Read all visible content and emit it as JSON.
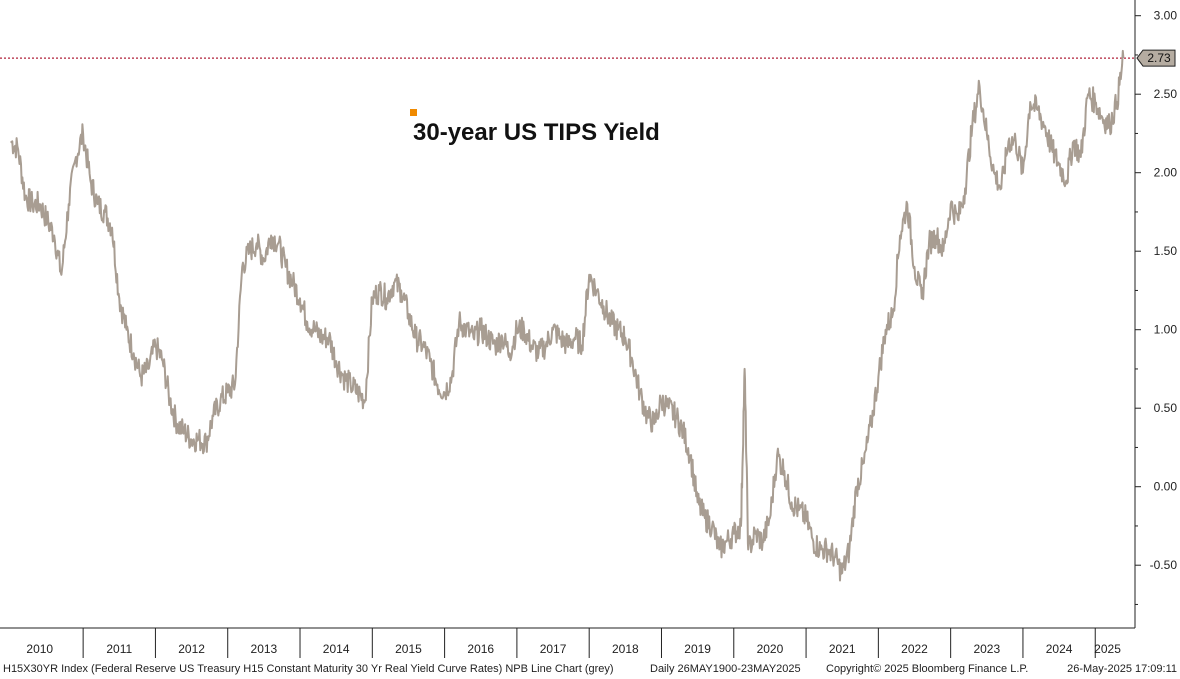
{
  "chart_data": {
    "type": "line",
    "title": "30-year US TIPS Yield",
    "series": [
      {
        "name": "H15X30YR Index",
        "color": "#a89d92",
        "x": [
          2010.0,
          2010.1,
          2010.2,
          2010.3,
          2010.4,
          2010.5,
          2010.6,
          2010.7,
          2010.8,
          2010.9,
          2011.0,
          2011.1,
          2011.2,
          2011.3,
          2011.4,
          2011.5,
          2011.6,
          2011.7,
          2011.8,
          2011.9,
          2012.0,
          2012.1,
          2012.2,
          2012.3,
          2012.4,
          2012.5,
          2012.6,
          2012.7,
          2012.8,
          2012.9,
          2013.0,
          2013.1,
          2013.2,
          2013.3,
          2013.4,
          2013.5,
          2013.6,
          2013.7,
          2013.8,
          2013.9,
          2014.0,
          2014.1,
          2014.2,
          2014.3,
          2014.4,
          2014.5,
          2014.6,
          2014.7,
          2014.8,
          2014.9,
          2015.0,
          2015.1,
          2015.2,
          2015.3,
          2015.4,
          2015.5,
          2015.6,
          2015.7,
          2015.8,
          2015.9,
          2016.0,
          2016.1,
          2016.2,
          2016.3,
          2016.4,
          2016.5,
          2016.6,
          2016.7,
          2016.8,
          2016.9,
          2017.0,
          2017.1,
          2017.2,
          2017.3,
          2017.4,
          2017.5,
          2017.6,
          2017.7,
          2017.8,
          2017.9,
          2018.0,
          2018.1,
          2018.2,
          2018.3,
          2018.4,
          2018.5,
          2018.6,
          2018.7,
          2018.8,
          2018.9,
          2019.0,
          2019.1,
          2019.2,
          2019.3,
          2019.4,
          2019.5,
          2019.6,
          2019.7,
          2019.8,
          2019.9,
          2020.0,
          2020.1,
          2020.15,
          2020.2,
          2020.3,
          2020.4,
          2020.5,
          2020.6,
          2020.7,
          2020.8,
          2020.9,
          2021.0,
          2021.1,
          2021.2,
          2021.3,
          2021.4,
          2021.5,
          2021.6,
          2021.7,
          2021.8,
          2021.9,
          2022.0,
          2022.1,
          2022.2,
          2022.3,
          2022.4,
          2022.5,
          2022.6,
          2022.7,
          2022.8,
          2022.9,
          2023.0,
          2023.1,
          2023.2,
          2023.3,
          2023.4,
          2023.5,
          2023.6,
          2023.7,
          2023.8,
          2023.9,
          2024.0,
          2024.1,
          2024.2,
          2024.3,
          2024.4,
          2024.5,
          2024.6,
          2024.7,
          2024.8,
          2024.9,
          2025.0,
          2025.1,
          2025.2,
          2025.3,
          2025.39
        ],
        "values": [
          2.2,
          2.15,
          1.85,
          1.8,
          1.8,
          1.7,
          1.6,
          1.35,
          1.8,
          2.1,
          2.25,
          1.95,
          1.8,
          1.75,
          1.65,
          1.2,
          1.0,
          0.85,
          0.7,
          0.75,
          0.9,
          0.8,
          0.55,
          0.4,
          0.35,
          0.3,
          0.3,
          0.28,
          0.45,
          0.55,
          0.6,
          0.65,
          1.4,
          1.5,
          1.55,
          1.45,
          1.6,
          1.55,
          1.4,
          1.3,
          1.2,
          1.05,
          1.0,
          0.95,
          0.95,
          0.8,
          0.7,
          0.65,
          0.6,
          0.55,
          1.2,
          1.25,
          1.2,
          1.3,
          1.25,
          1.1,
          0.95,
          0.9,
          0.8,
          0.65,
          0.6,
          0.7,
          1.05,
          1.0,
          0.95,
          1.0,
          0.95,
          0.9,
          0.95,
          0.85,
          1.0,
          1.0,
          0.9,
          0.85,
          0.9,
          1.0,
          0.95,
          0.9,
          0.95,
          0.9,
          1.35,
          1.25,
          1.15,
          1.05,
          1.0,
          0.95,
          0.8,
          0.6,
          0.45,
          0.4,
          0.55,
          0.5,
          0.45,
          0.35,
          0.2,
          -0.1,
          -0.2,
          -0.25,
          -0.4,
          -0.35,
          -0.3,
          -0.25,
          0.75,
          -0.4,
          -0.3,
          -0.35,
          -0.2,
          0.2,
          0.1,
          -0.1,
          -0.15,
          -0.2,
          -0.35,
          -0.4,
          -0.4,
          -0.45,
          -0.55,
          -0.4,
          0.0,
          0.15,
          0.4,
          0.7,
          1.0,
          1.1,
          1.6,
          1.8,
          1.4,
          1.2,
          1.55,
          1.6,
          1.5,
          1.8,
          1.7,
          1.9,
          2.3,
          2.55,
          2.25,
          2.0,
          1.9,
          2.2,
          2.2,
          2.0,
          2.45,
          2.4,
          2.3,
          2.15,
          2.05,
          1.95,
          2.2,
          2.1,
          2.5,
          2.45,
          2.35,
          2.3,
          2.45,
          2.73
        ]
      }
    ],
    "xlim": [
      2009.85,
      2025.55
    ],
    "ylim": [
      -0.9,
      3.1
    ],
    "yticks": [
      -0.5,
      0.0,
      0.5,
      1.0,
      1.5,
      2.0,
      2.5,
      3.0
    ],
    "ytick_labels": [
      "-0.50",
      "0.00",
      "0.50",
      "1.00",
      "1.50",
      "2.00",
      "2.50",
      "3.00"
    ],
    "ytick_minor": [
      -0.75,
      -0.25,
      0.25,
      0.75,
      1.25,
      1.75,
      2.25,
      2.75
    ],
    "year_boundaries": [
      2011,
      2012,
      2013,
      2014,
      2015,
      2016,
      2017,
      2018,
      2019,
      2020,
      2021,
      2022,
      2023,
      2024,
      2025
    ],
    "xtick_labels": [
      {
        "label": "2010",
        "x": 2010.4
      },
      {
        "label": "2011",
        "x": 2011.5
      },
      {
        "label": "2012",
        "x": 2012.5
      },
      {
        "label": "2013",
        "x": 2013.5
      },
      {
        "label": "2014",
        "x": 2014.5
      },
      {
        "label": "2015",
        "x": 2015.5
      },
      {
        "label": "2016",
        "x": 2016.5
      },
      {
        "label": "2017",
        "x": 2017.5
      },
      {
        "label": "2018",
        "x": 2018.5
      },
      {
        "label": "2019",
        "x": 2019.5
      },
      {
        "label": "2020",
        "x": 2020.5
      },
      {
        "label": "2021",
        "x": 2021.5
      },
      {
        "label": "2022",
        "x": 2022.5
      },
      {
        "label": "2023",
        "x": 2023.5
      },
      {
        "label": "2024",
        "x": 2024.5
      },
      {
        "label": "2025",
        "x": 2025.17
      }
    ],
    "last_value": 2.73,
    "last_value_label": "2.73",
    "reference_line_color": "#b0203a",
    "legend_marker_color": "#f08a00",
    "axis_side": "right",
    "grid": false
  },
  "footer": {
    "description": "H15X30YR Index (Federal Reserve US Treasury H15 Constant Maturity 30 Yr Real Yield Curve Rates) NPB Line Chart (grey)",
    "range": "Daily 26MAY1900-23MAY2025",
    "copyright": "Copyright© 2025 Bloomberg Finance L.P.",
    "timestamp": "26-May-2025 17:09:11"
  }
}
